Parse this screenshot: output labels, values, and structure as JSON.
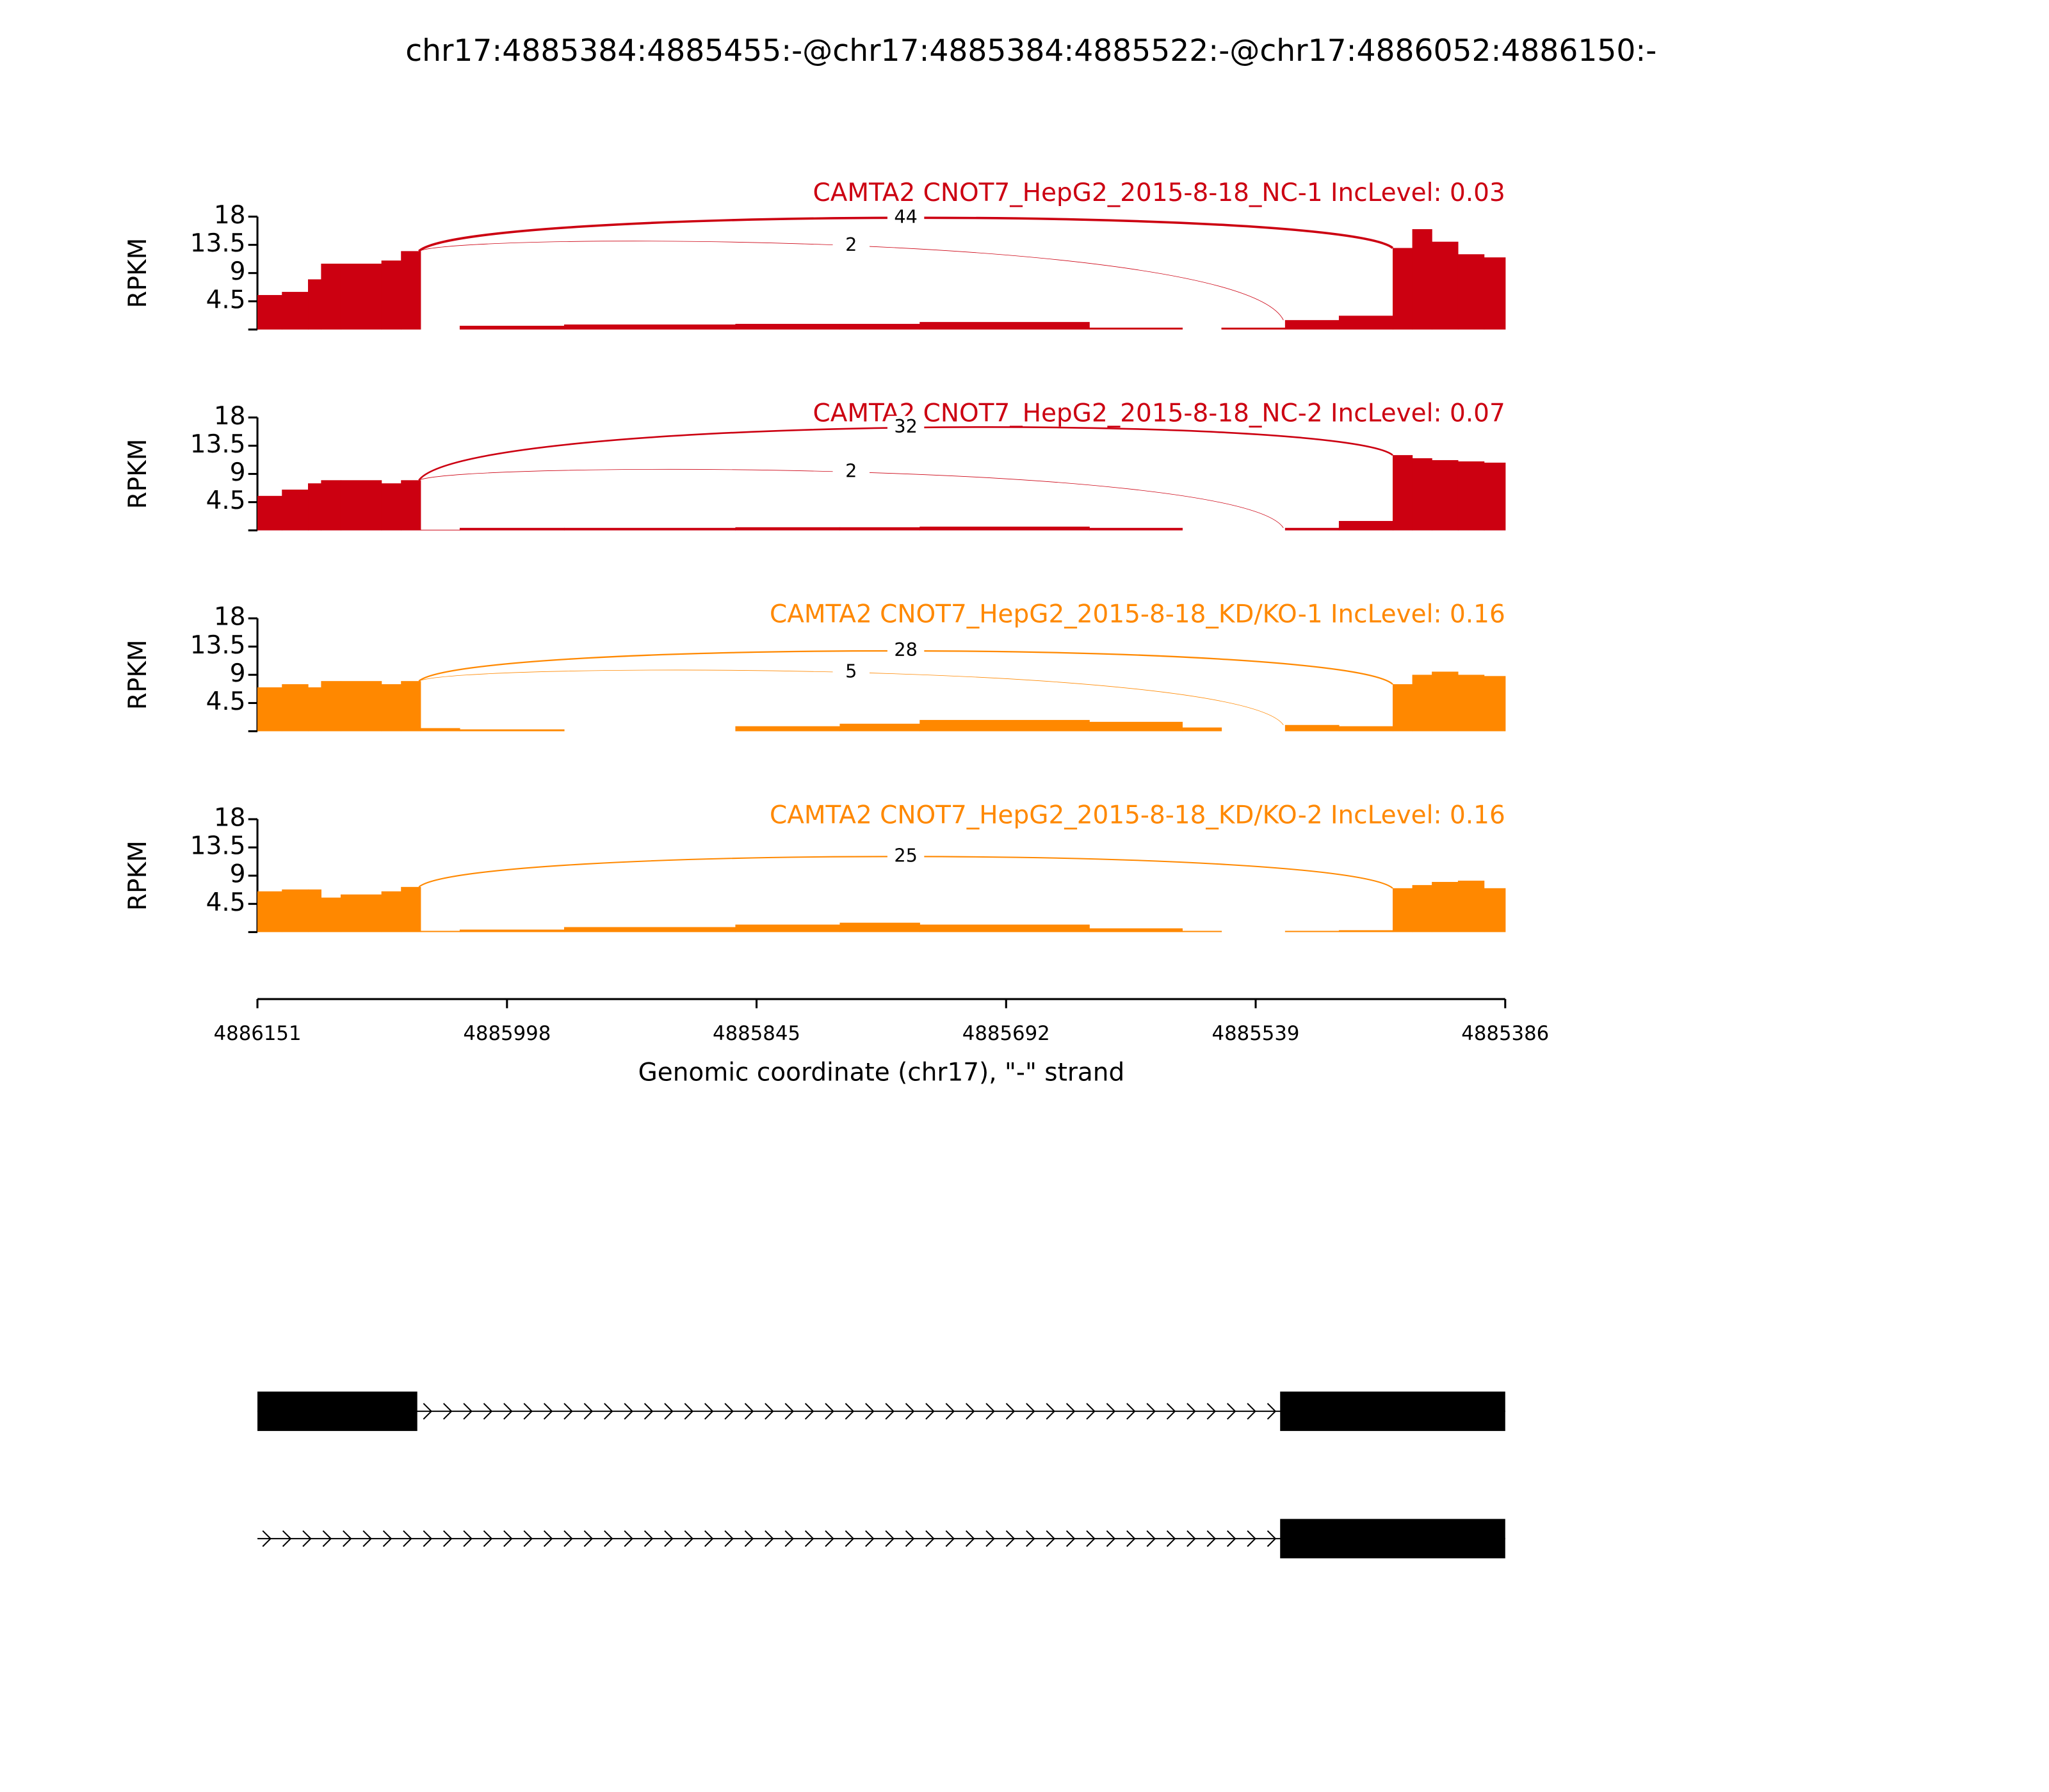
{
  "title": "chr17:4885384:4885455:-@chr17:4885384:4885522:-@chr17:4886052:4886150:-",
  "x_axis": {
    "label": "Genomic coordinate (chr17), \"-\" strand",
    "xlim": [
      4886151,
      4885386
    ],
    "xticks": [
      4886151,
      4885998,
      4885845,
      4885692,
      4885539,
      4885386
    ]
  },
  "chart_data": [
    {
      "type": "area",
      "title": "CAMTA2 CNOT7_HepG2_2015-8-18_NC-1 IncLevel: 0.03",
      "ylabel": "RPKM",
      "color": "#cc0011",
      "ylim": [
        0,
        18
      ],
      "yticks": [
        4.5,
        9,
        13.5,
        18
      ],
      "x": [
        4886151,
        4886136,
        4886120,
        4886112,
        4886100,
        4886075,
        4886063,
        4886051,
        4886027,
        4885963,
        4885858,
        4885794,
        4885745,
        4885641,
        4885584,
        4885560,
        4885521,
        4885488,
        4885455,
        4885443,
        4885431,
        4885415,
        4885399
      ],
      "values": [
        5.5,
        6,
        8,
        10.5,
        10.5,
        11,
        12.5,
        0,
        0.6,
        0.8,
        0.9,
        0.9,
        1.2,
        0.3,
        0,
        0.3,
        1.5,
        2.2,
        13,
        16,
        14,
        12,
        11.5
      ],
      "junctions": [
        {
          "start": 4886052,
          "end": 4885455,
          "count": 44
        },
        {
          "start": 4886052,
          "end": 4885522,
          "count": 2
        }
      ]
    },
    {
      "type": "area",
      "title": "CAMTA2 CNOT7_HepG2_2015-8-18_NC-2 IncLevel: 0.07",
      "ylabel": "RPKM",
      "color": "#cc0011",
      "ylim": [
        0,
        18
      ],
      "yticks": [
        4.5,
        9,
        13.5,
        18
      ],
      "x": [
        4886151,
        4886136,
        4886120,
        4886112,
        4886100,
        4886075,
        4886063,
        4886051,
        4886027,
        4885963,
        4885858,
        4885794,
        4885745,
        4885641,
        4885584,
        4885560,
        4885521,
        4885488,
        4885455,
        4885443,
        4885431,
        4885415,
        4885399
      ],
      "values": [
        5.5,
        6.5,
        7.5,
        8,
        8,
        7.5,
        8,
        0.1,
        0.4,
        0.4,
        0.5,
        0.5,
        0.6,
        0.4,
        0,
        0,
        0.4,
        1.5,
        12,
        11.5,
        11.2,
        11,
        10.8
      ],
      "junctions": [
        {
          "start": 4886052,
          "end": 4885455,
          "count": 32
        },
        {
          "start": 4886052,
          "end": 4885522,
          "count": 2
        }
      ]
    },
    {
      "type": "area",
      "title": "CAMTA2 CNOT7_HepG2_2015-8-18_KD/KO-1 IncLevel: 0.16",
      "ylabel": "RPKM",
      "color": "#ff8800",
      "ylim": [
        0,
        18
      ],
      "yticks": [
        4.5,
        9,
        13.5,
        18
      ],
      "x": [
        4886151,
        4886136,
        4886120,
        4886112,
        4886100,
        4886075,
        4886063,
        4886051,
        4886027,
        4885963,
        4885858,
        4885794,
        4885745,
        4885641,
        4885584,
        4885560,
        4885521,
        4885488,
        4885455,
        4885443,
        4885431,
        4885415,
        4885399
      ],
      "values": [
        7,
        7.5,
        7,
        8,
        8,
        7.5,
        8,
        0.5,
        0.3,
        0,
        0.8,
        1.2,
        1.8,
        1.5,
        0.6,
        0,
        1,
        0.8,
        7.5,
        9,
        9.5,
        9,
        8.8
      ],
      "junctions": [
        {
          "start": 4886052,
          "end": 4885455,
          "count": 28
        },
        {
          "start": 4886052,
          "end": 4885522,
          "count": 5
        }
      ]
    },
    {
      "type": "area",
      "title": "CAMTA2 CNOT7_HepG2_2015-8-18_KD/KO-2 IncLevel: 0.16",
      "ylabel": "RPKM",
      "color": "#ff8800",
      "ylim": [
        0,
        18
      ],
      "yticks": [
        4.5,
        9,
        13.5,
        18
      ],
      "x": [
        4886151,
        4886136,
        4886120,
        4886112,
        4886100,
        4886075,
        4886063,
        4886051,
        4886027,
        4885963,
        4885858,
        4885794,
        4885745,
        4885641,
        4885584,
        4885560,
        4885521,
        4885488,
        4885455,
        4885443,
        4885431,
        4885415,
        4885399
      ],
      "values": [
        6.5,
        6.8,
        6.8,
        5.5,
        6,
        6.5,
        7.2,
        0.2,
        0.4,
        0.8,
        1.2,
        1.5,
        1.2,
        0.6,
        0.2,
        0,
        0.2,
        0.3,
        7,
        7.5,
        8,
        8.2,
        7
      ],
      "junctions": [
        {
          "start": 4886052,
          "end": 4885455,
          "count": 25
        }
      ]
    }
  ],
  "transcripts": [
    {
      "span": [
        4886151,
        4885386
      ],
      "exons": [
        [
          4886151,
          4886053
        ],
        [
          4885524,
          4885386
        ]
      ]
    },
    {
      "span": [
        4886151,
        4885386
      ],
      "exons": [
        [
          4885524,
          4885386
        ]
      ]
    }
  ]
}
